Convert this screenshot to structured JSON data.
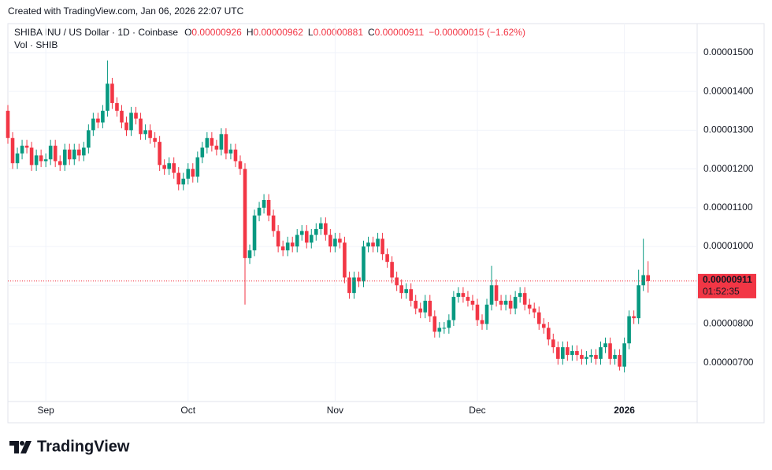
{
  "chart_data": {
    "type": "candlestick",
    "caption": "Created with TradingView.com, Jan 06, 2026 22:07 UTC",
    "title": "SHIBA INU / US Dollar · 1D · Coinbase",
    "ohlc_legend": [
      {
        "key": "O",
        "text": "0.00000926"
      },
      {
        "key": "H",
        "text": "0.00000962"
      },
      {
        "key": "L",
        "text": "0.00000881"
      },
      {
        "key": "C",
        "text": "0.00000911"
      }
    ],
    "change": "−0.00000015 (−1.62%)",
    "volume_label": "Vol · SHIB",
    "categories": [
      null,
      null,
      null,
      null,
      null,
      null,
      null,
      null,
      "Sep",
      null,
      null,
      null,
      null,
      null,
      null,
      null,
      null,
      null,
      null,
      null,
      null,
      null,
      null,
      null,
      null,
      null,
      null,
      null,
      null,
      null,
      null,
      null,
      null,
      null,
      null,
      null,
      null,
      null,
      "Oct",
      null,
      null,
      null,
      null,
      null,
      null,
      null,
      null,
      null,
      null,
      null,
      null,
      null,
      null,
      null,
      null,
      null,
      null,
      null,
      null,
      null,
      null,
      null,
      null,
      null,
      null,
      null,
      null,
      null,
      null,
      "Nov",
      null,
      null,
      null,
      null,
      null,
      null,
      null,
      null,
      null,
      null,
      null,
      null,
      null,
      null,
      null,
      null,
      null,
      null,
      null,
      null,
      null,
      null,
      null,
      null,
      null,
      null,
      null,
      null,
      null,
      "Dec",
      null,
      null,
      null,
      null,
      null,
      null,
      null,
      null,
      null,
      null,
      null,
      null,
      null,
      null,
      null,
      null,
      null,
      null,
      null,
      null,
      null,
      null,
      null,
      null,
      null,
      null,
      null,
      null,
      null,
      null,
      "2026",
      null,
      null,
      null,
      null,
      null
    ],
    "open": [
      1.35e-05,
      1.28e-05,
      1.215e-05,
      1.24e-05,
      1.26e-05,
      1.255e-05,
      1.21e-05,
      1.235e-05,
      1.22e-05,
      1.225e-05,
      1.26e-05,
      1.22e-05,
      1.21e-05,
      1.25e-05,
      1.225e-05,
      1.25e-05,
      1.235e-05,
      1.255e-05,
      1.3e-05,
      1.33e-05,
      1.32e-05,
      1.35e-05,
      1.42e-05,
      1.37e-05,
      1.35e-05,
      1.32e-05,
      1.3e-05,
      1.345e-05,
      1.33e-05,
      1.29e-05,
      1.3e-05,
      1.28e-05,
      1.27e-05,
      1.21e-05,
      1.2e-05,
      1.215e-05,
      1.19e-05,
      1.16e-05,
      1.175e-05,
      1.2e-05,
      1.18e-05,
      1.23e-05,
      1.255e-05,
      1.28e-05,
      1.26e-05,
      1.25e-05,
      1.29e-05,
      1.24e-05,
      1.25e-05,
      1.22e-05,
      1.2e-05,
      9.7e-06,
      9.9e-06,
      1.08e-05,
      1.1e-05,
      1.12e-05,
      1.08e-05,
      1.04e-05,
      1e-05,
      9.9e-06,
      1.01e-05,
      1e-05,
      1.03e-05,
      1.04e-05,
      1.01e-05,
      1.03e-05,
      1.045e-05,
      1.06e-05,
      1.03e-05,
      1e-05,
      1.02e-05,
      1.01e-05,
      9.2e-06,
      8.8e-06,
      9.2e-06,
      9.1e-06,
      1e-05,
      1.01e-05,
      1e-05,
      1.02e-05,
      9.8e-06,
      9.6e-06,
      9.2e-06,
      9e-06,
      8.8e-06,
      8.9e-06,
      8.6e-06,
      8.4e-06,
      8.3e-06,
      8.6e-06,
      8.2e-06,
      7.8e-06,
      7.9e-06,
      7.9e-06,
      8.1e-06,
      8.7e-06,
      8.8e-06,
      8.7e-06,
      8.6e-06,
      8.5e-06,
      8.1e-06,
      8e-06,
      8.5e-06,
      9e-06,
      8.6e-06,
      8.5e-06,
      8.6e-06,
      8.4e-06,
      8.7e-06,
      8.8e-06,
      8.5e-06,
      8.4e-06,
      8.3e-06,
      8e-06,
      7.9e-06,
      7.6e-06,
      7.4e-06,
      7.1e-06,
      7.4e-06,
      7.2e-06,
      7.3e-06,
      7.2e-06,
      7.1e-06,
      7.15e-06,
      7.2e-06,
      7.1e-06,
      7.4e-06,
      7.5e-06,
      7.1e-06,
      7.2e-06,
      6.9e-06,
      7.5e-06,
      8.2e-06,
      8.15e-06,
      9e-06,
      9.26e-06
    ],
    "high": [
      1.365e-05,
      1.295e-05,
      1.255e-05,
      1.275e-05,
      1.275e-05,
      1.27e-05,
      1.25e-05,
      1.25e-05,
      1.24e-05,
      1.275e-05,
      1.275e-05,
      1.235e-05,
      1.265e-05,
      1.265e-05,
      1.265e-05,
      1.265e-05,
      1.27e-05,
      1.315e-05,
      1.345e-05,
      1.345e-05,
      1.365e-05,
      1.48e-05,
      1.435e-05,
      1.385e-05,
      1.365e-05,
      1.335e-05,
      1.36e-05,
      1.36e-05,
      1.345e-05,
      1.315e-05,
      1.315e-05,
      1.295e-05,
      1.285e-05,
      1.225e-05,
      1.23e-05,
      1.23e-05,
      1.205e-05,
      1.19e-05,
      1.215e-05,
      1.215e-05,
      1.245e-05,
      1.27e-05,
      1.295e-05,
      1.295e-05,
      1.275e-05,
      1.305e-05,
      1.305e-05,
      1.265e-05,
      1.265e-05,
      1.235e-05,
      1.215e-05,
      1.005e-05,
      1.095e-05,
      1.115e-05,
      1.135e-05,
      1.135e-05,
      1.095e-05,
      1.055e-05,
      1.015e-05,
      1.025e-05,
      1.025e-05,
      1.045e-05,
      1.055e-05,
      1.055e-05,
      1.045e-05,
      1.06e-05,
      1.075e-05,
      1.075e-05,
      1.045e-05,
      1.035e-05,
      1.035e-05,
      1.025e-05,
      9.35e-06,
      9.35e-06,
      9.35e-06,
      1.015e-05,
      1.025e-05,
      1.025e-05,
      1.035e-05,
      1.035e-05,
      9.95e-06,
      9.75e-06,
      9.35e-06,
      9.15e-06,
      9.05e-06,
      9.05e-06,
      8.75e-06,
      8.55e-06,
      8.75e-06,
      8.75e-06,
      8.35e-06,
      8.05e-06,
      8.05e-06,
      8.25e-06,
      8.85e-06,
      8.95e-06,
      8.95e-06,
      8.85e-06,
      8.75e-06,
      8.65e-06,
      8.25e-06,
      8.65e-06,
      9.5e-06,
      9.15e-06,
      8.75e-06,
      8.75e-06,
      8.75e-06,
      8.85e-06,
      8.95e-06,
      8.95e-06,
      8.65e-06,
      8.55e-06,
      8.45e-06,
      8.15e-06,
      8.05e-06,
      7.75e-06,
      7.55e-06,
      7.55e-06,
      7.55e-06,
      7.45e-06,
      7.45e-06,
      7.35e-06,
      7.3e-06,
      7.35e-06,
      7.35e-06,
      7.55e-06,
      7.65e-06,
      7.65e-06,
      7.35e-06,
      7.35e-06,
      7.65e-06,
      8.35e-06,
      8.35e-06,
      9.4e-06,
      1.02e-05,
      9.62e-06
    ],
    "low": [
      1.265e-05,
      1.2e-05,
      1.2e-05,
      1.225e-05,
      1.24e-05,
      1.195e-05,
      1.195e-05,
      1.205e-05,
      1.205e-05,
      1.21e-05,
      1.205e-05,
      1.195e-05,
      1.195e-05,
      1.21e-05,
      1.21e-05,
      1.22e-05,
      1.22e-05,
      1.24e-05,
      1.285e-05,
      1.305e-05,
      1.305e-05,
      1.335e-05,
      1.355e-05,
      1.335e-05,
      1.305e-05,
      1.285e-05,
      1.285e-05,
      1.315e-05,
      1.275e-05,
      1.275e-05,
      1.265e-05,
      1.255e-05,
      1.195e-05,
      1.185e-05,
      1.185e-05,
      1.175e-05,
      1.145e-05,
      1.145e-05,
      1.16e-05,
      1.165e-05,
      1.165e-05,
      1.215e-05,
      1.24e-05,
      1.245e-05,
      1.235e-05,
      1.235e-05,
      1.225e-05,
      1.225e-05,
      1.205e-05,
      1.185e-05,
      8.5e-06,
      9.55e-06,
      9.75e-06,
      1.065e-05,
      1.085e-05,
      1.065e-05,
      1.025e-05,
      9.85e-06,
      9.75e-06,
      9.75e-06,
      9.85e-06,
      9.85e-06,
      1.015e-05,
      9.95e-06,
      9.95e-06,
      1.015e-05,
      1.03e-05,
      1.015e-05,
      9.85e-06,
      9.85e-06,
      9.95e-06,
      9.05e-06,
      8.65e-06,
      8.65e-06,
      8.95e-06,
      8.95e-06,
      9.85e-06,
      9.85e-06,
      9.85e-06,
      9.65e-06,
      9.45e-06,
      9.05e-06,
      8.85e-06,
      8.65e-06,
      8.65e-06,
      8.45e-06,
      8.25e-06,
      8.15e-06,
      8.15e-06,
      8.05e-06,
      7.65e-06,
      7.65e-06,
      7.75e-06,
      7.75e-06,
      7.95e-06,
      8.55e-06,
      8.55e-06,
      8.45e-06,
      8.35e-06,
      7.95e-06,
      7.85e-06,
      7.85e-06,
      8.35e-06,
      8.45e-06,
      8.35e-06,
      8.35e-06,
      8.25e-06,
      8.25e-06,
      8.55e-06,
      8.35e-06,
      8.25e-06,
      8.15e-06,
      7.85e-06,
      7.75e-06,
      7.45e-06,
      7.25e-06,
      6.95e-06,
      6.95e-06,
      7.05e-06,
      7.05e-06,
      7.05e-06,
      6.95e-06,
      6.95e-06,
      7e-06,
      6.95e-06,
      6.95e-06,
      7.25e-06,
      6.95e-06,
      6.95e-06,
      6.8e-06,
      6.75e-06,
      7.35e-06,
      8e-06,
      8e-06,
      8.85e-06,
      8.81e-06
    ],
    "close": [
      1.28e-05,
      1.215e-05,
      1.24e-05,
      1.26e-05,
      1.255e-05,
      1.21e-05,
      1.235e-05,
      1.22e-05,
      1.225e-05,
      1.26e-05,
      1.22e-05,
      1.21e-05,
      1.25e-05,
      1.225e-05,
      1.25e-05,
      1.235e-05,
      1.255e-05,
      1.3e-05,
      1.33e-05,
      1.32e-05,
      1.35e-05,
      1.42e-05,
      1.37e-05,
      1.35e-05,
      1.32e-05,
      1.3e-05,
      1.345e-05,
      1.33e-05,
      1.29e-05,
      1.3e-05,
      1.28e-05,
      1.27e-05,
      1.21e-05,
      1.2e-05,
      1.215e-05,
      1.19e-05,
      1.16e-05,
      1.175e-05,
      1.2e-05,
      1.18e-05,
      1.23e-05,
      1.255e-05,
      1.28e-05,
      1.26e-05,
      1.25e-05,
      1.29e-05,
      1.24e-05,
      1.25e-05,
      1.22e-05,
      1.2e-05,
      9.7e-06,
      9.9e-06,
      1.08e-05,
      1.1e-05,
      1.12e-05,
      1.08e-05,
      1.04e-05,
      1e-05,
      9.9e-06,
      1.01e-05,
      1e-05,
      1.03e-05,
      1.04e-05,
      1.01e-05,
      1.03e-05,
      1.045e-05,
      1.06e-05,
      1.03e-05,
      1e-05,
      1.02e-05,
      1.01e-05,
      9.2e-06,
      8.8e-06,
      9.2e-06,
      9.1e-06,
      1e-05,
      1.01e-05,
      1e-05,
      1.02e-05,
      9.8e-06,
      9.6e-06,
      9.2e-06,
      9e-06,
      8.8e-06,
      8.9e-06,
      8.6e-06,
      8.4e-06,
      8.3e-06,
      8.6e-06,
      8.2e-06,
      7.8e-06,
      7.9e-06,
      7.9e-06,
      8.1e-06,
      8.7e-06,
      8.8e-06,
      8.7e-06,
      8.6e-06,
      8.5e-06,
      8.1e-06,
      8e-06,
      8.5e-06,
      9e-06,
      8.6e-06,
      8.5e-06,
      8.6e-06,
      8.4e-06,
      8.7e-06,
      8.8e-06,
      8.5e-06,
      8.4e-06,
      8.3e-06,
      8e-06,
      7.9e-06,
      7.6e-06,
      7.4e-06,
      7.1e-06,
      7.4e-06,
      7.2e-06,
      7.3e-06,
      7.2e-06,
      7.1e-06,
      7.15e-06,
      7.2e-06,
      7.1e-06,
      7.4e-06,
      7.5e-06,
      7.1e-06,
      7.2e-06,
      6.9e-06,
      7.5e-06,
      8.2e-06,
      8.15e-06,
      9e-06,
      9.26e-06,
      9.11e-06
    ],
    "up_color": "#089981",
    "down_color": "#f23645",
    "ylim": [
      6e-06,
      1.575e-05
    ],
    "yticks": [
      {
        "value": 7e-06,
        "label": "0.00000700"
      },
      {
        "value": 8e-06,
        "label": "0.00000800"
      },
      {
        "value": 9e-06,
        "label": "0.00000900"
      },
      {
        "value": 1e-05,
        "label": "0.00001000"
      },
      {
        "value": 1.1e-05,
        "label": "0.00001100"
      },
      {
        "value": 1.2e-05,
        "label": "0.00001200"
      },
      {
        "value": 1.3e-05,
        "label": "0.00001300"
      },
      {
        "value": 1.4e-05,
        "label": "0.00001400"
      },
      {
        "value": 1.5e-05,
        "label": "0.00001500"
      }
    ],
    "grid": true,
    "last_price_label": "0.00000911",
    "countdown": "01:52:35",
    "brand": "TradingView"
  }
}
